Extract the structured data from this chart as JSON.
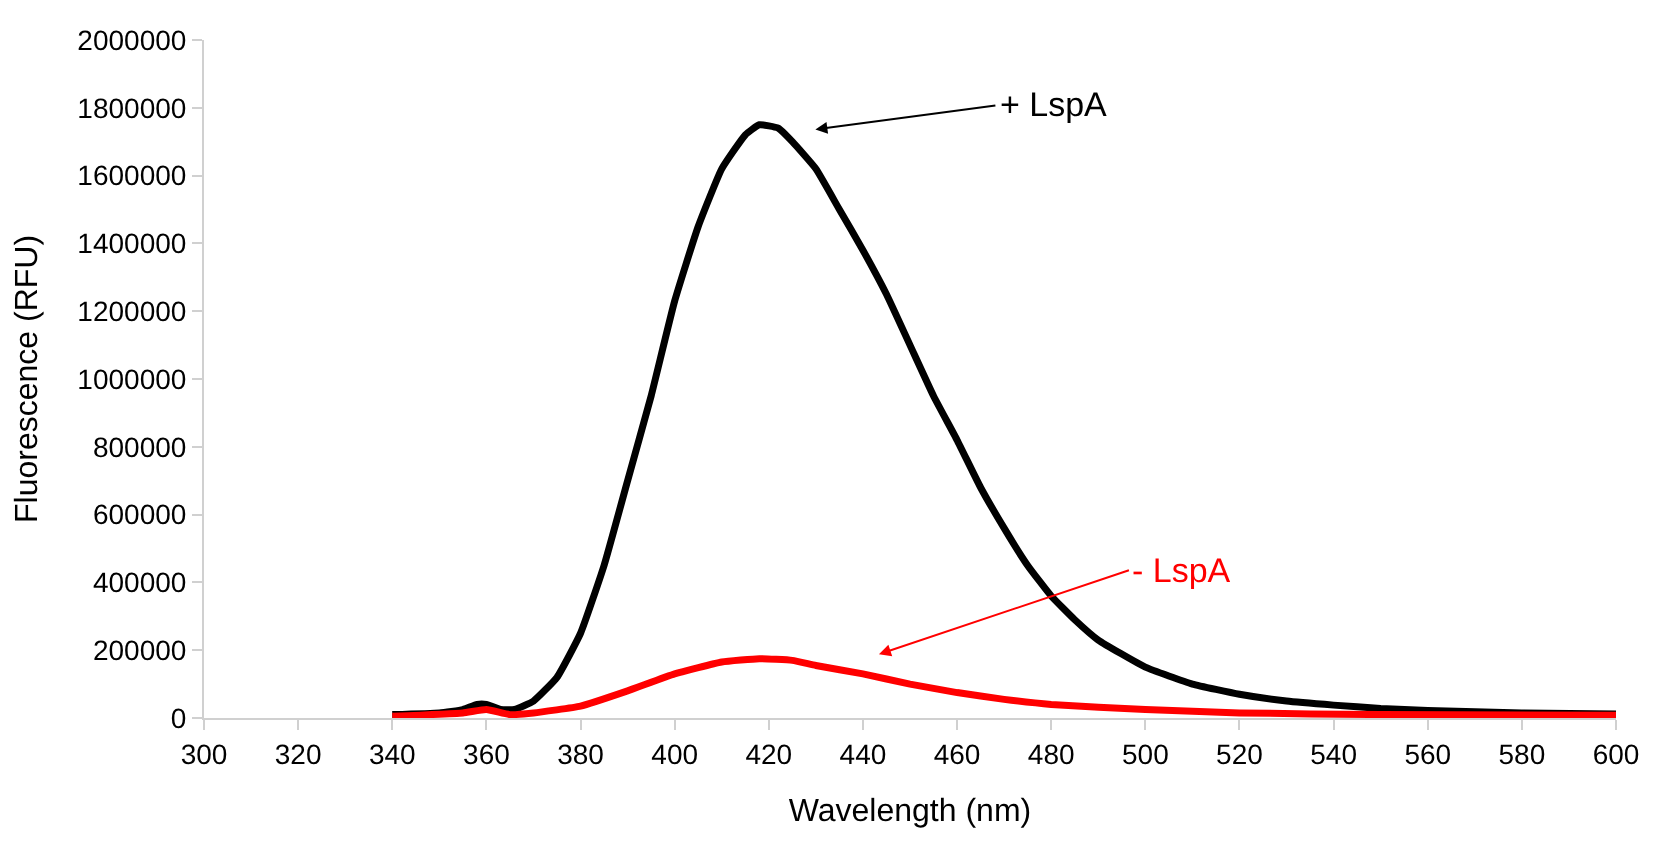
{
  "chart_data": {
    "type": "line",
    "xlabel": "Wavelength (nm)",
    "ylabel": "Fluorescence (RFU)",
    "xlim": [
      300,
      600
    ],
    "xticks": [
      300,
      320,
      340,
      360,
      380,
      400,
      420,
      440,
      460,
      480,
      500,
      520,
      540,
      560,
      580,
      600
    ],
    "ylim": [
      0,
      2000000
    ],
    "yticks": [
      0,
      200000,
      400000,
      600000,
      800000,
      1000000,
      1200000,
      1400000,
      1600000,
      1800000,
      2000000
    ],
    "marker": "none",
    "line_style": "solid",
    "series": [
      {
        "color": "#000000",
        "x": [
          340,
          350,
          355,
          358,
          360,
          363,
          366,
          370,
          375,
          380,
          385,
          390,
          395,
          400,
          405,
          410,
          415,
          418,
          422,
          425,
          430,
          435,
          440,
          445,
          450,
          455,
          460,
          465,
          470,
          475,
          480,
          485,
          490,
          500,
          510,
          520,
          530,
          540,
          550,
          560,
          580,
          600
        ],
        "values": [
          10000,
          15000,
          25000,
          40000,
          40000,
          25000,
          25000,
          50000,
          120000,
          250000,
          450000,
          700000,
          950000,
          1230000,
          1450000,
          1620000,
          1720000,
          1750000,
          1740000,
          1700000,
          1620000,
          1500000,
          1380000,
          1250000,
          1100000,
          950000,
          820000,
          680000,
          560000,
          450000,
          360000,
          290000,
          230000,
          150000,
          100000,
          70000,
          50000,
          38000,
          28000,
          22000,
          15000,
          12000
        ]
      },
      {
        "color": "#ff0000",
        "x": [
          340,
          355,
          360,
          365,
          370,
          380,
          390,
          400,
          410,
          418,
          425,
          430,
          440,
          450,
          460,
          470,
          480,
          500,
          520,
          550,
          600
        ],
        "values": [
          5000,
          15000,
          25000,
          10000,
          15000,
          35000,
          80000,
          130000,
          165000,
          175000,
          170000,
          155000,
          130000,
          100000,
          75000,
          55000,
          40000,
          25000,
          15000,
          10000,
          8000
        ]
      }
    ],
    "annotations": [
      "+ LspA",
      "- LspA"
    ]
  }
}
